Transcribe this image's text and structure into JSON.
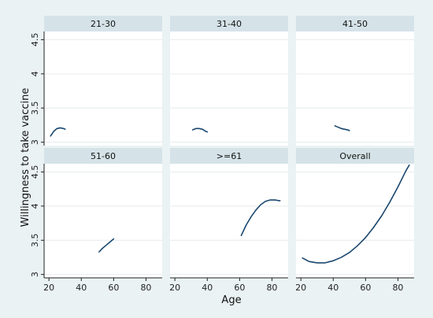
{
  "chart_data": {
    "type": "line",
    "ylabel": "Willingness to take vaccine",
    "xlabel": "Age",
    "xlim": [
      17,
      90
    ],
    "ylim": [
      2.95,
      4.62
    ],
    "xticks": [
      20,
      40,
      60,
      80
    ],
    "yticks": [
      3,
      3.5,
      4,
      4.5
    ],
    "ytick_labels": [
      "3",
      "3.5",
      "4",
      "4.5"
    ],
    "xtick_labels": [
      "20",
      "40",
      "60",
      "80"
    ],
    "grid": true,
    "panels": [
      {
        "title": "21-30",
        "x": [
          21,
          23,
          25,
          27,
          29,
          30
        ],
        "y": [
          3.09,
          3.16,
          3.2,
          3.21,
          3.2,
          3.19
        ]
      },
      {
        "title": "31-40",
        "x": [
          31,
          33,
          35,
          37,
          39,
          40
        ],
        "y": [
          3.18,
          3.2,
          3.2,
          3.19,
          3.16,
          3.15
        ]
      },
      {
        "title": "41-50",
        "x": [
          41,
          43,
          45,
          47,
          49,
          50
        ],
        "y": [
          3.24,
          3.22,
          3.2,
          3.19,
          3.18,
          3.17
        ]
      },
      {
        "title": "51-60",
        "x": [
          51,
          53,
          55,
          57,
          59,
          60
        ],
        "y": [
          3.33,
          3.38,
          3.42,
          3.46,
          3.5,
          3.52
        ]
      },
      {
        "title": ">=61",
        "x": [
          61,
          64,
          67,
          70,
          73,
          76,
          79,
          82,
          84,
          85
        ],
        "y": [
          3.57,
          3.72,
          3.84,
          3.94,
          4.02,
          4.07,
          4.09,
          4.09,
          4.08,
          4.08
        ]
      },
      {
        "title": "Overall",
        "x": [
          21,
          25,
          30,
          35,
          40,
          45,
          50,
          55,
          60,
          65,
          70,
          75,
          80,
          85,
          87
        ],
        "y": [
          3.24,
          3.19,
          3.17,
          3.17,
          3.2,
          3.25,
          3.32,
          3.42,
          3.54,
          3.69,
          3.86,
          4.06,
          4.28,
          4.52,
          4.6
        ]
      }
    ]
  }
}
